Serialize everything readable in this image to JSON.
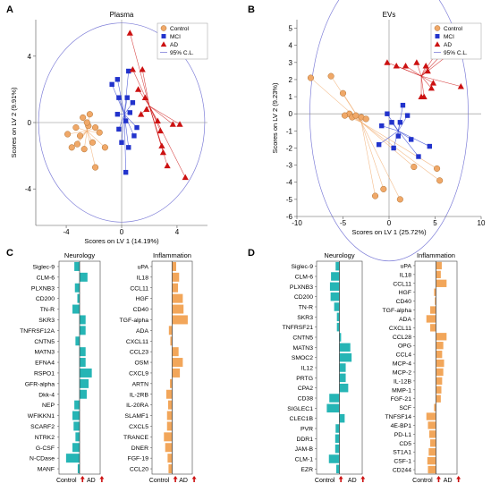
{
  "panels": {
    "A": {
      "letter": "A"
    },
    "B": {
      "letter": "B"
    },
    "C": {
      "letter": "C"
    },
    "D": {
      "letter": "D"
    }
  },
  "colors": {
    "control": "#f0a868",
    "mci": "#2233cc",
    "ad": "#cc1111",
    "bar_neuro": "#26b5b5",
    "bar_infl": "#f2a65a",
    "circle": "#7f7fd8",
    "axis": "#888888"
  },
  "chart_data": [
    {
      "id": "A",
      "type": "scatter",
      "title": "Plasma",
      "xlabel": "Scores on LV 1 (14.19%)",
      "ylabel": "Scores on LV 2 (9.91%)",
      "xlim": [
        -6.2,
        6.2
      ],
      "ylim": [
        -6.2,
        6.2
      ],
      "xticks": [
        -4,
        0,
        4
      ],
      "yticks": [
        -4,
        0,
        4
      ],
      "legend": {
        "placement": "top-right",
        "entries": [
          "Control",
          "MCI",
          "AD",
          "95% C.L."
        ]
      },
      "circle_radius": 6.0,
      "series": [
        {
          "name": "Control",
          "marker": "circle",
          "centroid": [
            -2.5,
            -0.5
          ],
          "points": [
            [
              -3.9,
              -0.7
            ],
            [
              -3.3,
              -0.3
            ],
            [
              -2.4,
              -0.2
            ],
            [
              -1.6,
              -0.6
            ],
            [
              -2.8,
              0.3
            ],
            [
              -2.3,
              0.5
            ],
            [
              -1.9,
              -0.3
            ],
            [
              -3.0,
              -0.8
            ],
            [
              -3.6,
              -1.5
            ],
            [
              -2.7,
              -1.6
            ],
            [
              -1.2,
              -1.5
            ],
            [
              -2.1,
              -1.2
            ],
            [
              -2.5,
              0.0
            ],
            [
              -3.2,
              -1.3
            ],
            [
              -1.9,
              -2.7
            ]
          ]
        },
        {
          "name": "MCI",
          "marker": "square",
          "centroid": [
            0.2,
            0.5
          ],
          "points": [
            [
              -0.3,
              2.6
            ],
            [
              -0.7,
              2.3
            ],
            [
              0.4,
              1.5
            ],
            [
              -0.3,
              0.5
            ],
            [
              0.3,
              0.1
            ],
            [
              -0.2,
              -0.4
            ],
            [
              0.0,
              -1.2
            ],
            [
              0.5,
              -1.5
            ],
            [
              0.9,
              -0.8
            ],
            [
              0.6,
              0.6
            ],
            [
              1.1,
              -0.3
            ],
            [
              -0.2,
              1.5
            ],
            [
              0.8,
              1.2
            ],
            [
              0.3,
              -3.0
            ],
            [
              0.5,
              3.1
            ]
          ]
        },
        {
          "name": "AD",
          "marker": "triangle",
          "centroid": [
            2.0,
            1.0
          ],
          "points": [
            [
              0.6,
              5.4
            ],
            [
              0.8,
              3.2
            ],
            [
              1.5,
              3.2
            ],
            [
              1.2,
              2.0
            ],
            [
              1.7,
              1.5
            ],
            [
              1.8,
              0.8
            ],
            [
              2.6,
              0.1
            ],
            [
              3.7,
              -0.1
            ],
            [
              2.8,
              -0.5
            ],
            [
              2.9,
              -1.4
            ],
            [
              3.0,
              -1.8
            ],
            [
              3.3,
              -2.6
            ],
            [
              4.6,
              -3.3
            ],
            [
              4.2,
              -0.1
            ],
            [
              1.4,
              0.5
            ]
          ]
        }
      ]
    },
    {
      "id": "B",
      "type": "scatter",
      "title": "EVs",
      "xlabel": "Scores on LV 1 (25.72%)",
      "ylabel": "Scores on LV 2 (9.23%)",
      "xlim": [
        -10,
        10
      ],
      "ylim": [
        -6,
        5.5
      ],
      "xticks": [
        -10,
        -5,
        0,
        5,
        10
      ],
      "yticks": [
        -6,
        -5,
        -4,
        -3,
        -2,
        -1,
        0,
        1,
        2,
        3,
        4,
        5
      ],
      "legend": {
        "placement": "top-right",
        "entries": [
          "Control",
          "MCI",
          "AD",
          "95% C.L."
        ]
      },
      "circle_radius": 8.6,
      "series": [
        {
          "name": "Control",
          "marker": "circle",
          "centroid": [
            -3.0,
            -0.5
          ],
          "points": [
            [
              -8.5,
              2.1
            ],
            [
              -6.3,
              2.2
            ],
            [
              -5.0,
              1.2
            ],
            [
              -4.3,
              0.0
            ],
            [
              -4.0,
              -0.2
            ],
            [
              -3.6,
              -0.1
            ],
            [
              -3.0,
              -0.2
            ],
            [
              -2.5,
              -0.3
            ],
            [
              -4.8,
              -0.1
            ],
            [
              -0.6,
              -4.4
            ],
            [
              1.2,
              -5.0
            ],
            [
              2.7,
              -3.1
            ],
            [
              5.2,
              -3.2
            ],
            [
              5.5,
              -3.9
            ],
            [
              -1.5,
              -4.8
            ]
          ]
        },
        {
          "name": "MCI",
          "marker": "square",
          "centroid": [
            1.0,
            -1.0
          ],
          "points": [
            [
              -0.2,
              0.0
            ],
            [
              -0.8,
              -0.7
            ],
            [
              0.3,
              -0.5
            ],
            [
              1.2,
              -0.5
            ],
            [
              2.0,
              -0.1
            ],
            [
              1.0,
              -1.3
            ],
            [
              0.5,
              -2.0
            ],
            [
              2.4,
              -1.5
            ],
            [
              3.2,
              -2.5
            ],
            [
              4.4,
              -1.9
            ],
            [
              -1.1,
              -1.8
            ],
            [
              1.5,
              0.5
            ]
          ]
        },
        {
          "name": "AD",
          "marker": "triangle",
          "centroid": [
            3.5,
            2.2
          ],
          "points": [
            [
              -0.2,
              3.0
            ],
            [
              0.8,
              2.8
            ],
            [
              1.8,
              2.8
            ],
            [
              3.0,
              3.0
            ],
            [
              4.0,
              2.8
            ],
            [
              5.2,
              3.6
            ],
            [
              4.2,
              2.5
            ],
            [
              3.8,
              1.0
            ],
            [
              3.5,
              1.0
            ],
            [
              4.8,
              1.8
            ],
            [
              7.8,
              1.6
            ],
            [
              6.5,
              3.9
            ],
            [
              8.0,
              4.1
            ],
            [
              4.6,
              1.5
            ]
          ]
        }
      ]
    },
    {
      "id": "C",
      "type": "bar",
      "orientation": "horizontal",
      "categories": [
        "Siglec-9",
        "CLM-6",
        "PLXNB3",
        "CD200",
        "TN-R",
        "SKR3",
        "TNFRSF12A",
        "CNTN5",
        "MATN3",
        "EFNA4",
        "RSPO1",
        "GFR-alpha",
        "Dkk-4",
        "NEP",
        "WFIKKN1",
        "SCARF2",
        "NTRK2",
        "G-CSF",
        "N-CDase",
        "MANF"
      ],
      "panels": [
        {
          "title": "Neurology",
          "xlabel_left": "Control",
          "xlabel_right": "AD",
          "xlim": [
            -1,
            1
          ],
          "color_key": "bar_neuro",
          "values": [
            -0.28,
            0.42,
            -0.25,
            -0.12,
            -0.38,
            0.32,
            0.32,
            -0.22,
            0.32,
            0.32,
            0.65,
            0.48,
            0.38,
            -0.28,
            -0.38,
            -0.32,
            -0.22,
            -0.38,
            -0.72,
            -0.1
          ]
        },
        {
          "title": "Inflammation",
          "categories": [
            "uPA",
            "IL18",
            "CCL11",
            "HGF",
            "CD40",
            "TGF-alpha",
            "ADA",
            "CXCL11",
            "CCL23",
            "OSM",
            "CXCL9",
            "ARTN",
            "IL-2RB",
            "IL-20RA",
            "SLAMF1",
            "CXCL5",
            "TRANCE",
            "DNER",
            "FGF-19",
            "CCL20"
          ],
          "xlabel_left": "Control",
          "xlabel_right": "AD",
          "xlim": [
            -1,
            1
          ],
          "color_key": "bar_infl",
          "values": [
            0.22,
            0.38,
            0.32,
            0.58,
            0.62,
            0.85,
            -0.18,
            -0.1,
            0.35,
            0.58,
            0.42,
            -0.12,
            -0.32,
            -0.22,
            -0.28,
            -0.28,
            -0.45,
            -0.38,
            -0.25,
            -0.2
          ]
        }
      ]
    },
    {
      "id": "D",
      "type": "bar",
      "orientation": "horizontal",
      "categories": [
        "Siglec-9",
        "CLM-6",
        "PLXNB3",
        "CD200",
        "TN-R",
        "SKR3",
        "TNFRSF21",
        "CNTN5",
        "MATN3",
        "SMOC2",
        "IL12",
        "PRTG",
        "CPA2",
        "CD38",
        "SIGLEC1",
        "CLEC1B",
        "PVR",
        "DDR1",
        "JAM-B",
        "CLM-1",
        "EZR"
      ],
      "panels": [
        {
          "title": "Neurology",
          "xlabel_left": "Control",
          "xlabel_right": "AD",
          "xlim": [
            -1,
            1
          ],
          "color_key": "bar_neuro",
          "values": [
            -0.18,
            -0.4,
            -0.45,
            -0.42,
            -0.25,
            -0.12,
            -0.12,
            0.08,
            0.52,
            0.58,
            0.3,
            0.3,
            0.42,
            -0.48,
            -0.6,
            0.25,
            -0.18,
            -0.2,
            -0.2,
            -0.5,
            -0.15
          ]
        },
        {
          "title": "Inflammation",
          "categories": [
            "uPA",
            "IL18",
            "CCL11",
            "HGF",
            "CD40",
            "TGF-alpha",
            "ADA",
            "CXCL11",
            "CCL28",
            "OPG",
            "CCL4",
            "MCP-4",
            "MCP-2",
            "IL-12B",
            "MMP-1",
            "FGF-21",
            "SCF",
            "TNFSF14",
            "4E-BP1",
            "PD-L1",
            "CD5",
            "ST1A1",
            "CSF-1",
            "CD244"
          ],
          "xlabel_left": "Control",
          "xlabel_right": "AD",
          "xlim": [
            -1,
            1
          ],
          "color_key": "bar_infl",
          "values": [
            0.3,
            0.25,
            0.55,
            -0.1,
            -0.06,
            -0.3,
            -0.5,
            -0.3,
            0.55,
            0.38,
            0.32,
            0.42,
            0.38,
            0.32,
            0.28,
            0.25,
            -0.1,
            -0.5,
            -0.42,
            -0.35,
            -0.3,
            -0.38,
            -0.45,
            -0.42
          ]
        }
      ]
    }
  ]
}
